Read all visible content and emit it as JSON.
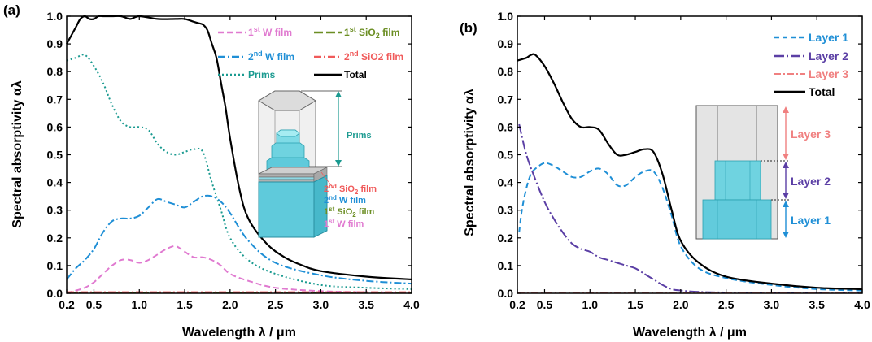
{
  "chart_data": [
    {
      "type": "line",
      "panel_label": "(a)",
      "xlabel": "Wavelength λ / μm",
      "ylabel": "Spectral absorptivity αλ",
      "xlim": [
        0.2,
        4.0
      ],
      "ylim": [
        0.0,
        1.0
      ],
      "xticks": [
        "0.2",
        "0.5",
        "1.0",
        "1.5",
        "2.0",
        "2.5",
        "3.0",
        "3.5",
        "4.0"
      ],
      "yticks": [
        "0.0",
        "0.1",
        "0.2",
        "0.3",
        "0.4",
        "0.5",
        "0.6",
        "0.7",
        "0.8",
        "0.9",
        "1.0"
      ],
      "legend_placement": "top-right",
      "series": [
        {
          "name": "1st W film",
          "color": "#e07ad0",
          "dash": "dash",
          "x": [
            0.2,
            0.3,
            0.4,
            0.5,
            0.6,
            0.7,
            0.8,
            0.9,
            1.0,
            1.1,
            1.2,
            1.3,
            1.4,
            1.5,
            1.6,
            1.7,
            1.8,
            1.9,
            2.0,
            2.2,
            2.5,
            3.0,
            3.5,
            4.0
          ],
          "y": [
            0.0,
            0.01,
            0.02,
            0.04,
            0.07,
            0.1,
            0.12,
            0.12,
            0.11,
            0.12,
            0.14,
            0.16,
            0.17,
            0.15,
            0.13,
            0.13,
            0.12,
            0.1,
            0.07,
            0.045,
            0.02,
            0.008,
            0.004,
            0.002
          ]
        },
        {
          "name": "1st SiO2 film",
          "color": "#6b8e23",
          "dash": "longdash",
          "x": [
            0.2,
            1.0,
            2.0,
            3.0,
            4.0
          ],
          "y": [
            0.002,
            0.002,
            0.002,
            0.002,
            0.002
          ]
        },
        {
          "name": "2nd W film",
          "color": "#1f8fd6",
          "dash": "dashdot",
          "x": [
            0.2,
            0.3,
            0.4,
            0.5,
            0.6,
            0.7,
            0.8,
            0.9,
            1.0,
            1.1,
            1.2,
            1.3,
            1.4,
            1.5,
            1.6,
            1.7,
            1.8,
            1.9,
            2.0,
            2.2,
            2.5,
            3.0,
            3.5,
            4.0
          ],
          "y": [
            0.05,
            0.09,
            0.12,
            0.16,
            0.22,
            0.26,
            0.27,
            0.27,
            0.28,
            0.31,
            0.34,
            0.33,
            0.32,
            0.31,
            0.33,
            0.35,
            0.35,
            0.33,
            0.29,
            0.19,
            0.11,
            0.065,
            0.045,
            0.035
          ]
        },
        {
          "name": "2nd SiO2 film",
          "color": "#f05a5a",
          "dash": "dashdot",
          "x": [
            0.2,
            1.0,
            2.0,
            3.0,
            4.0
          ],
          "y": [
            0.004,
            0.004,
            0.004,
            0.004,
            0.004
          ]
        },
        {
          "name": "Prims",
          "color": "#1a9a90",
          "dash": "dot",
          "x": [
            0.2,
            0.3,
            0.4,
            0.5,
            0.6,
            0.7,
            0.8,
            0.9,
            1.0,
            1.1,
            1.2,
            1.3,
            1.4,
            1.5,
            1.6,
            1.7,
            1.8,
            1.9,
            2.0,
            2.2,
            2.5,
            3.0,
            3.5,
            4.0
          ],
          "y": [
            0.84,
            0.85,
            0.86,
            0.82,
            0.76,
            0.68,
            0.62,
            0.6,
            0.6,
            0.59,
            0.54,
            0.51,
            0.5,
            0.51,
            0.52,
            0.51,
            0.4,
            0.3,
            0.2,
            0.12,
            0.07,
            0.03,
            0.02,
            0.015
          ]
        },
        {
          "name": "Total",
          "color": "#000000",
          "dash": "solid",
          "x": [
            0.2,
            0.25,
            0.3,
            0.35,
            0.4,
            0.45,
            0.5,
            0.55,
            0.6,
            0.7,
            0.8,
            0.9,
            1.0,
            1.2,
            1.4,
            1.5,
            1.6,
            1.65,
            1.7,
            1.75,
            1.8,
            1.85,
            1.9,
            1.95,
            2.0,
            2.1,
            2.2,
            2.4,
            2.6,
            2.8,
            3.0,
            3.5,
            4.0
          ],
          "y": [
            0.9,
            0.93,
            0.96,
            0.99,
            1.0,
            0.99,
            0.99,
            1.0,
            1.0,
            1.0,
            1.0,
            0.99,
            1.0,
            0.99,
            0.99,
            0.99,
            0.98,
            0.975,
            0.97,
            0.95,
            0.9,
            0.85,
            0.76,
            0.67,
            0.56,
            0.38,
            0.27,
            0.18,
            0.13,
            0.1,
            0.08,
            0.06,
            0.05
          ]
        }
      ],
      "legend_labels": {
        "w1": {
          "pre": "1",
          "sup": "st",
          "post": " W film"
        },
        "sio1": {
          "pre": "1",
          "sup": "st",
          "post": " SiO",
          "sub": "2",
          "tail": " film"
        },
        "w2": {
          "pre": "2",
          "sup": "nd",
          "post": " W film"
        },
        "sio2": {
          "pre": "2",
          "sup": "nd",
          "post": " SiO2 film"
        },
        "prims": "Prims",
        "total": "Total"
      },
      "inset_labels": {
        "prims": "Prims",
        "sio2_2": {
          "pre": "2",
          "sup": "nd",
          "post": " SiO",
          "sub": "2",
          "tail": " film"
        },
        "w_2": {
          "pre": "2",
          "sup": "nd",
          "post": " W film"
        },
        "sio2_1": {
          "pre": "1",
          "sup": "st",
          "post": " SiO",
          "sub": "2",
          "tail": " film"
        },
        "w_1": {
          "pre": "1",
          "sup": "st",
          "post": " W film"
        }
      }
    },
    {
      "type": "line",
      "panel_label": "(b)",
      "xlabel": "Wavelength λ / μm",
      "ylabel": "Spectral absorptivity αλ",
      "xlim": [
        0.2,
        4.0
      ],
      "ylim": [
        0.0,
        1.0
      ],
      "xticks": [
        "0.2",
        "0.5",
        "1.0",
        "1.5",
        "2.0",
        "2.5",
        "3.0",
        "3.5",
        "4.0"
      ],
      "yticks": [
        "0.0",
        "0.1",
        "0.2",
        "0.3",
        "0.4",
        "0.5",
        "0.6",
        "0.7",
        "0.8",
        "0.9",
        "1.0"
      ],
      "legend_placement": "top-right",
      "series": [
        {
          "name": "Layer 1",
          "color": "#1f8fd6",
          "dash": "dash",
          "x": [
            0.22,
            0.25,
            0.3,
            0.35,
            0.4,
            0.5,
            0.6,
            0.7,
            0.8,
            0.9,
            1.0,
            1.1,
            1.2,
            1.3,
            1.4,
            1.5,
            1.6,
            1.7,
            1.8,
            1.9,
            2.0,
            2.2,
            2.5,
            3.0,
            3.5,
            4.0
          ],
          "y": [
            0.22,
            0.3,
            0.38,
            0.43,
            0.45,
            0.47,
            0.46,
            0.44,
            0.42,
            0.42,
            0.44,
            0.45,
            0.43,
            0.39,
            0.39,
            0.42,
            0.44,
            0.44,
            0.38,
            0.28,
            0.17,
            0.09,
            0.055,
            0.03,
            0.015,
            0.01
          ]
        },
        {
          "name": "Layer 2",
          "color": "#5b3fa5",
          "dash": "longdashdot",
          "x": [
            0.22,
            0.3,
            0.4,
            0.5,
            0.6,
            0.7,
            0.8,
            0.9,
            1.0,
            1.1,
            1.2,
            1.3,
            1.4,
            1.5,
            1.6,
            1.7,
            1.8,
            1.9,
            2.0,
            2.2,
            2.5,
            3.0,
            3.5,
            4.0
          ],
          "y": [
            0.61,
            0.5,
            0.41,
            0.33,
            0.27,
            0.22,
            0.18,
            0.16,
            0.15,
            0.13,
            0.12,
            0.11,
            0.1,
            0.09,
            0.07,
            0.05,
            0.03,
            0.015,
            0.01,
            0.005,
            0.003,
            0.002,
            0.002,
            0.002
          ]
        },
        {
          "name": "Layer 3",
          "color": "#f08080",
          "dash": "dashdot",
          "x": [
            0.2,
            1.0,
            2.0,
            3.0,
            4.0
          ],
          "y": [
            0.002,
            0.002,
            0.002,
            0.002,
            0.002
          ]
        },
        {
          "name": "Total",
          "color": "#000000",
          "dash": "solid",
          "x": [
            0.2,
            0.3,
            0.35,
            0.4,
            0.5,
            0.6,
            0.7,
            0.8,
            0.9,
            1.0,
            1.1,
            1.2,
            1.3,
            1.4,
            1.5,
            1.6,
            1.7,
            1.8,
            1.9,
            2.0,
            2.2,
            2.5,
            3.0,
            3.5,
            4.0
          ],
          "y": [
            0.84,
            0.85,
            0.86,
            0.86,
            0.82,
            0.76,
            0.69,
            0.63,
            0.6,
            0.6,
            0.59,
            0.54,
            0.5,
            0.5,
            0.51,
            0.52,
            0.51,
            0.43,
            0.3,
            0.19,
            0.11,
            0.06,
            0.035,
            0.02,
            0.015
          ]
        }
      ],
      "inset_labels": {
        "layer3": "Layer 3",
        "layer2": "Layer 2",
        "layer1": "Layer 1"
      }
    }
  ]
}
